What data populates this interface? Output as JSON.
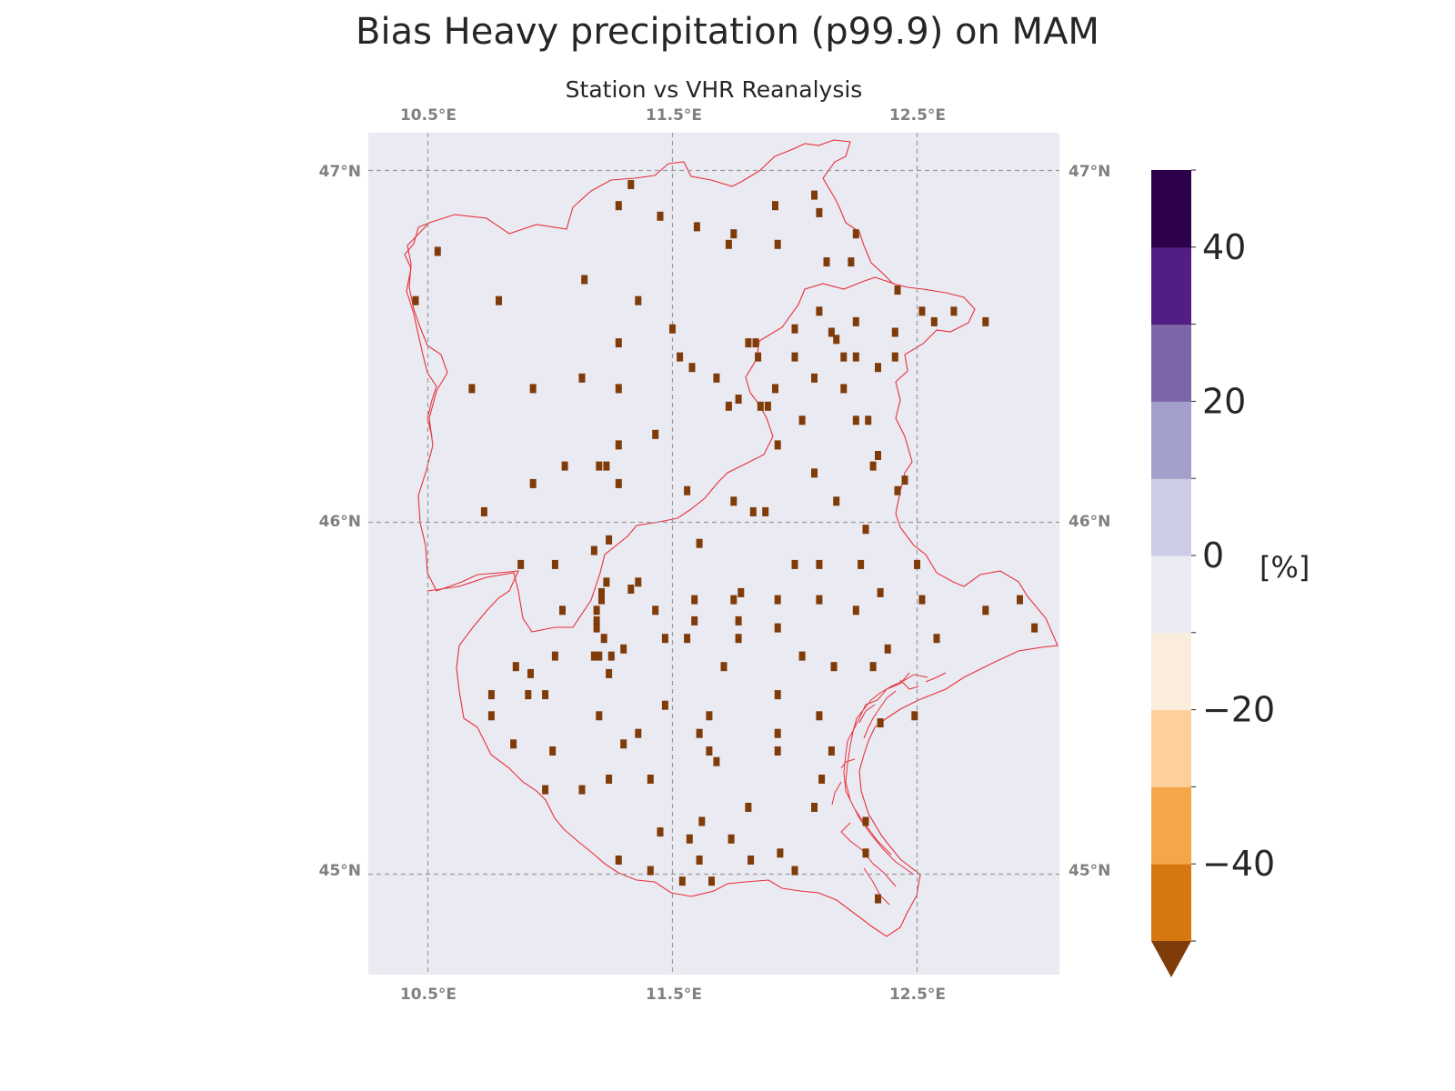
{
  "title": "Bias Heavy precipitation (p99.9) on MAM",
  "subtitle": "Station vs VHR Reanalysis",
  "map": {
    "lon_ticks": [
      "10.5°E",
      "11.5°E",
      "12.5°E"
    ],
    "lat_ticks": [
      "47°N",
      "46°N",
      "45°N"
    ],
    "extent": {
      "lon": [
        10.25,
        13.1
      ],
      "lat": [
        44.7,
        47.1
      ]
    },
    "gridlines": true,
    "background_color": "#eaeaf2",
    "boundary_color": "#e8303a",
    "station_color": "#7f3b08",
    "stations": [
      [
        11.33,
        46.96
      ],
      [
        11.28,
        46.9
      ],
      [
        11.45,
        46.87
      ],
      [
        11.6,
        46.84
      ],
      [
        11.92,
        46.9
      ],
      [
        12.08,
        46.93
      ],
      [
        12.1,
        46.88
      ],
      [
        11.75,
        46.82
      ],
      [
        11.73,
        46.79
      ],
      [
        11.93,
        46.79
      ],
      [
        12.25,
        46.82
      ],
      [
        12.13,
        46.74
      ],
      [
        12.23,
        46.74
      ],
      [
        10.54,
        46.77
      ],
      [
        11.14,
        46.69
      ],
      [
        10.79,
        46.63
      ],
      [
        10.45,
        46.63
      ],
      [
        11.36,
        46.63
      ],
      [
        12.42,
        46.66
      ],
      [
        12.1,
        46.6
      ],
      [
        12.25,
        46.57
      ],
      [
        12.52,
        46.6
      ],
      [
        12.57,
        46.57
      ],
      [
        12.65,
        46.6
      ],
      [
        12.78,
        46.57
      ],
      [
        11.5,
        46.55
      ],
      [
        12.0,
        46.55
      ],
      [
        12.15,
        46.54
      ],
      [
        12.17,
        46.52
      ],
      [
        12.41,
        46.54
      ],
      [
        11.28,
        46.51
      ],
      [
        11.81,
        46.51
      ],
      [
        11.84,
        46.51
      ],
      [
        11.53,
        46.47
      ],
      [
        11.58,
        46.44
      ],
      [
        11.85,
        46.47
      ],
      [
        12.0,
        46.47
      ],
      [
        12.2,
        46.47
      ],
      [
        12.25,
        46.47
      ],
      [
        12.41,
        46.47
      ],
      [
        12.34,
        46.44
      ],
      [
        11.13,
        46.41
      ],
      [
        11.68,
        46.41
      ],
      [
        12.08,
        46.41
      ],
      [
        10.68,
        46.38
      ],
      [
        10.93,
        46.38
      ],
      [
        11.28,
        46.38
      ],
      [
        11.92,
        46.38
      ],
      [
        12.2,
        46.38
      ],
      [
        11.77,
        46.35
      ],
      [
        11.73,
        46.33
      ],
      [
        11.86,
        46.33
      ],
      [
        11.89,
        46.33
      ],
      [
        12.03,
        46.29
      ],
      [
        12.25,
        46.29
      ],
      [
        12.3,
        46.29
      ],
      [
        11.43,
        46.25
      ],
      [
        11.28,
        46.22
      ],
      [
        11.93,
        46.22
      ],
      [
        12.34,
        46.19
      ],
      [
        11.06,
        46.16
      ],
      [
        11.2,
        46.16
      ],
      [
        11.23,
        46.16
      ],
      [
        12.32,
        46.16
      ],
      [
        12.08,
        46.14
      ],
      [
        12.45,
        46.12
      ],
      [
        10.93,
        46.11
      ],
      [
        11.28,
        46.11
      ],
      [
        11.56,
        46.09
      ],
      [
        12.42,
        46.09
      ],
      [
        11.75,
        46.06
      ],
      [
        12.17,
        46.06
      ],
      [
        10.73,
        46.03
      ],
      [
        11.83,
        46.03
      ],
      [
        11.88,
        46.03
      ],
      [
        11.61,
        45.94
      ],
      [
        11.24,
        45.95
      ],
      [
        11.18,
        45.92
      ],
      [
        12.29,
        45.98
      ],
      [
        10.88,
        45.88
      ],
      [
        11.02,
        45.88
      ],
      [
        12.0,
        45.88
      ],
      [
        12.1,
        45.88
      ],
      [
        12.27,
        45.88
      ],
      [
        12.5,
        45.88
      ],
      [
        11.23,
        45.83
      ],
      [
        11.36,
        45.83
      ],
      [
        11.33,
        45.81
      ],
      [
        11.21,
        45.8
      ],
      [
        11.21,
        45.78
      ],
      [
        11.78,
        45.8
      ],
      [
        12.35,
        45.8
      ],
      [
        11.59,
        45.78
      ],
      [
        11.75,
        45.78
      ],
      [
        11.93,
        45.78
      ],
      [
        12.1,
        45.78
      ],
      [
        12.52,
        45.78
      ],
      [
        12.92,
        45.78
      ],
      [
        11.05,
        45.75
      ],
      [
        11.43,
        45.75
      ],
      [
        11.19,
        45.75
      ],
      [
        12.25,
        45.75
      ],
      [
        12.78,
        45.75
      ],
      [
        11.19,
        45.72
      ],
      [
        11.59,
        45.72
      ],
      [
        11.77,
        45.72
      ],
      [
        11.93,
        45.7
      ],
      [
        11.19,
        45.7
      ],
      [
        12.98,
        45.7
      ],
      [
        11.22,
        45.67
      ],
      [
        11.47,
        45.67
      ],
      [
        11.56,
        45.67
      ],
      [
        11.77,
        45.67
      ],
      [
        12.58,
        45.67
      ],
      [
        11.3,
        45.64
      ],
      [
        12.38,
        45.64
      ],
      [
        11.02,
        45.62
      ],
      [
        11.18,
        45.62
      ],
      [
        11.2,
        45.62
      ],
      [
        11.25,
        45.62
      ],
      [
        12.03,
        45.62
      ],
      [
        10.86,
        45.59
      ],
      [
        11.71,
        45.59
      ],
      [
        12.16,
        45.59
      ],
      [
        12.32,
        45.59
      ],
      [
        10.92,
        45.57
      ],
      [
        11.24,
        45.57
      ],
      [
        10.76,
        45.51
      ],
      [
        10.91,
        45.51
      ],
      [
        10.98,
        45.51
      ],
      [
        11.93,
        45.51
      ],
      [
        11.47,
        45.48
      ],
      [
        10.76,
        45.45
      ],
      [
        11.65,
        45.45
      ],
      [
        12.1,
        45.45
      ],
      [
        11.2,
        45.45
      ],
      [
        12.49,
        45.45
      ],
      [
        12.35,
        45.43
      ],
      [
        11.36,
        45.4
      ],
      [
        11.61,
        45.4
      ],
      [
        11.93,
        45.4
      ],
      [
        10.85,
        45.37
      ],
      [
        11.3,
        45.37
      ],
      [
        11.93,
        45.35
      ],
      [
        12.15,
        45.35
      ],
      [
        11.01,
        45.35
      ],
      [
        11.65,
        45.35
      ],
      [
        11.68,
        45.32
      ],
      [
        11.24,
        45.27
      ],
      [
        11.41,
        45.27
      ],
      [
        12.11,
        45.27
      ],
      [
        10.98,
        45.24
      ],
      [
        11.13,
        45.24
      ],
      [
        12.08,
        45.19
      ],
      [
        11.81,
        45.19
      ],
      [
        11.62,
        45.15
      ],
      [
        12.29,
        45.15
      ],
      [
        11.45,
        45.12
      ],
      [
        11.57,
        45.1
      ],
      [
        11.74,
        45.1
      ],
      [
        11.94,
        45.06
      ],
      [
        12.29,
        45.06
      ],
      [
        11.28,
        45.04
      ],
      [
        11.61,
        45.04
      ],
      [
        11.82,
        45.04
      ],
      [
        11.41,
        45.01
      ],
      [
        12.0,
        45.01
      ],
      [
        11.54,
        44.98
      ],
      [
        11.66,
        44.98
      ],
      [
        12.34,
        44.93
      ]
    ]
  },
  "colorbar": {
    "label": "[%]",
    "tick_labels": [
      "40",
      "20",
      "0",
      "−20",
      "−40"
    ],
    "tick_values": [
      40,
      20,
      0,
      -20,
      -40
    ],
    "levels": [
      -50,
      -40,
      -30,
      -20,
      -10,
      0,
      10,
      20,
      30,
      40,
      50
    ],
    "colors": [
      "#d6770f",
      "#f3a64a",
      "#fdd09a",
      "#fbeddb",
      "#ebebf3",
      "#cccce4",
      "#a39fcb",
      "#7c66a8",
      "#521d84",
      "#2d004b"
    ],
    "under_color": "#7f3b08"
  }
}
